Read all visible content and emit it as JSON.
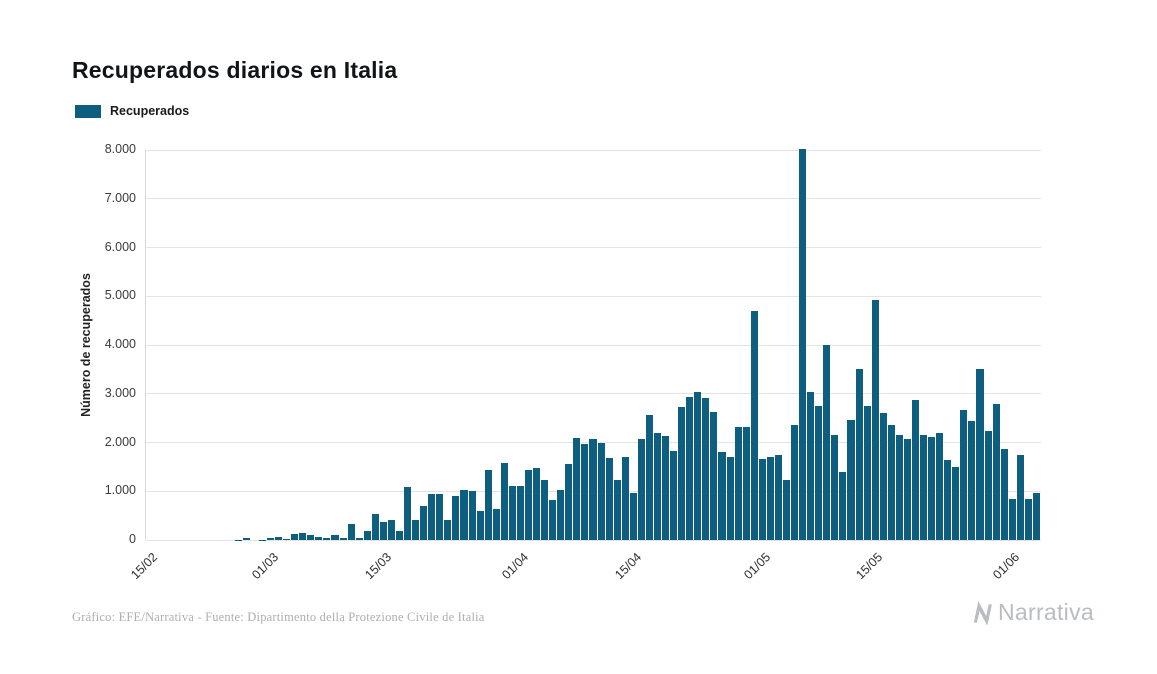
{
  "title": "Recuperados diarios en Italia",
  "legend": {
    "label": "Recuperados",
    "color": "#0e5e7f"
  },
  "footer": {
    "credit": "Gráfico: EFE/Narrativa - Fuente: Dipartimento della Protezione Civile de Italia"
  },
  "brand": {
    "name": "Narrativa",
    "icon": "narrativa-n-icon",
    "color": "#b9bcc0"
  },
  "chart_data": {
    "type": "bar",
    "title": "Recuperados diarios en Italia",
    "xlabel": "",
    "ylabel": "Número de recuperados",
    "ylim": [
      0,
      8000
    ],
    "grid": true,
    "legend_position": "top-left",
    "bar_color": "#0e5e7f",
    "y_tick_labels": [
      "0",
      "1.000",
      "2.000",
      "3.000",
      "4.000",
      "5.000",
      "6.000",
      "7.000",
      "8.000"
    ],
    "x_tick_labels": [
      "15/02",
      "01/03",
      "15/03",
      "01/04",
      "15/04",
      "01/05",
      "15/05",
      "01/06"
    ],
    "x": [
      "15/02",
      "16/02",
      "17/02",
      "18/02",
      "19/02",
      "20/02",
      "21/02",
      "22/02",
      "23/02",
      "24/02",
      "25/02",
      "26/02",
      "27/02",
      "28/02",
      "29/02",
      "01/03",
      "02/03",
      "03/03",
      "04/03",
      "05/03",
      "06/03",
      "07/03",
      "08/03",
      "09/03",
      "10/03",
      "11/03",
      "12/03",
      "13/03",
      "14/03",
      "15/03",
      "16/03",
      "17/03",
      "18/03",
      "19/03",
      "20/03",
      "21/03",
      "22/03",
      "23/03",
      "24/03",
      "25/03",
      "26/03",
      "27/03",
      "28/03",
      "29/03",
      "30/03",
      "31/03",
      "01/04",
      "02/04",
      "03/04",
      "04/04",
      "05/04",
      "06/04",
      "07/04",
      "08/04",
      "09/04",
      "10/04",
      "11/04",
      "12/04",
      "13/04",
      "14/04",
      "15/04",
      "16/04",
      "17/04",
      "18/04",
      "19/04",
      "20/04",
      "21/04",
      "22/04",
      "23/04",
      "24/04",
      "25/04",
      "26/04",
      "27/04",
      "28/04",
      "29/04",
      "30/04",
      "01/05",
      "02/05",
      "03/05",
      "04/05",
      "05/05",
      "06/05",
      "07/05",
      "08/05",
      "09/05",
      "10/05",
      "11/05",
      "12/05",
      "13/05",
      "14/05",
      "15/05",
      "16/05",
      "17/05",
      "18/05",
      "19/05",
      "20/05",
      "21/05",
      "22/05",
      "23/05",
      "24/05",
      "25/05",
      "26/05",
      "27/05",
      "28/05",
      "29/05",
      "30/05",
      "31/05",
      "01/06",
      "02/06",
      "03/06",
      "04/06"
    ],
    "series": [
      {
        "name": "Recuperados",
        "values": [
          0,
          0,
          0,
          0,
          0,
          0,
          0,
          1,
          0,
          1,
          1,
          2,
          42,
          1,
          4,
          33,
          66,
          11,
          116,
          138,
          109,
          66,
          33,
          102,
          41,
          321,
          41,
          181,
          527,
          369,
          414,
          192,
          1084,
          415,
          689,
          943,
          952,
          408,
          894,
          1036,
          999,
          589,
          1434,
          646,
          1590,
          1109,
          1118,
          1431,
          1480,
          1238,
          819,
          1022,
          1555,
          2099,
          1979,
          2079,
          1985,
          1677,
          1224,
          1695,
          962,
          2072,
          2563,
          2200,
          2128,
          1822,
          2723,
          2943,
          3033,
          2922,
          2622,
          1808,
          1696,
          2317,
          2311,
          4693,
          1665,
          1693,
          1740,
          1225,
          2352,
          8014,
          3031,
          2747,
          4008,
          2155,
          1402,
          2452,
          3502,
          2747,
          4917,
          2605,
          2366,
          2150,
          2075,
          2881,
          2160,
          2120,
          2194,
          1639,
          1502,
          2677,
          2443,
          3503,
          2240,
          2789,
          1874,
          848,
          1737,
          846,
          957
        ]
      }
    ]
  }
}
